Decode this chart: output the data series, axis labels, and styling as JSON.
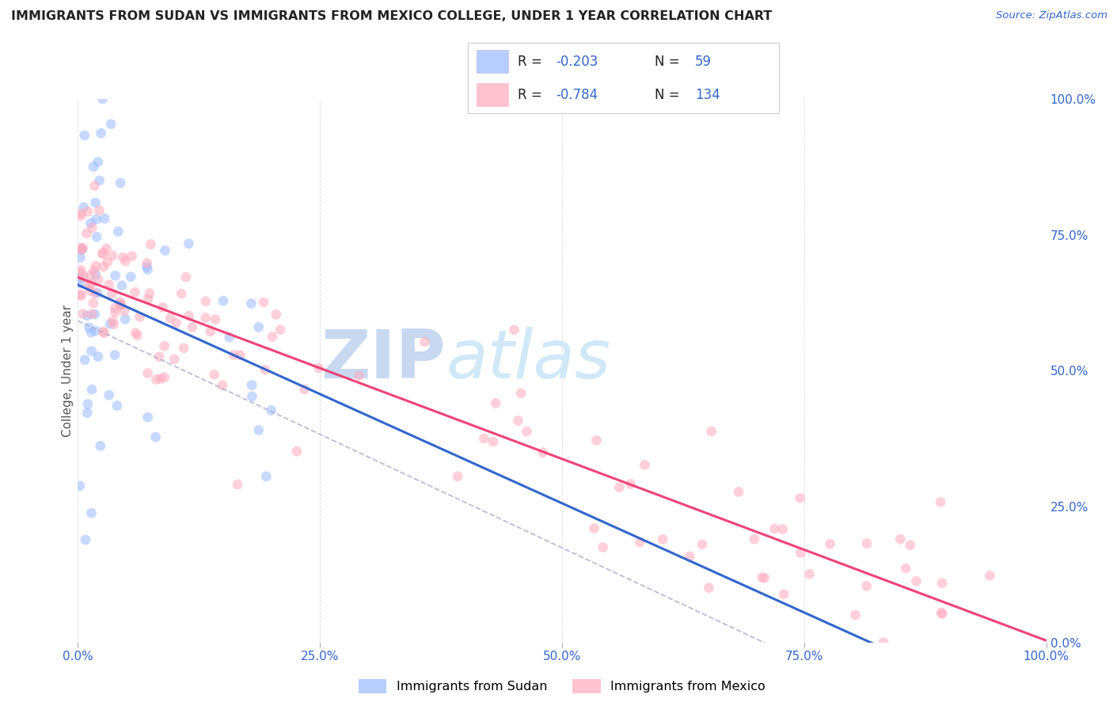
{
  "title": "IMMIGRANTS FROM SUDAN VS IMMIGRANTS FROM MEXICO COLLEGE, UNDER 1 YEAR CORRELATION CHART",
  "source": "Source: ZipAtlas.com",
  "ylabel": "College, Under 1 year",
  "legend_labels": [
    "Immigrants from Sudan",
    "Immigrants from Mexico"
  ],
  "sudan_R": -0.203,
  "sudan_N": 59,
  "mexico_R": -0.784,
  "mexico_N": 134,
  "sudan_color": "#99bbff",
  "mexico_color": "#ffaabb",
  "sudan_line_color": "#3366cc",
  "mexico_line_color": "#ee4477",
  "dashed_line_color": "#aaaacc",
  "background_color": "#ffffff",
  "grid_color": "#dddddd",
  "title_color": "#222222",
  "axis_label_color": "#555555",
  "blue_text_color": "#3366cc",
  "watermark_zip_color": "#c8d8f0",
  "watermark_atlas_color": "#d0e8f8",
  "xlim": [
    0,
    100
  ],
  "ylim": [
    0,
    100
  ],
  "xticks": [
    0,
    25,
    50,
    75,
    100
  ],
  "yticks_right": [
    0,
    25,
    50,
    75,
    100
  ]
}
